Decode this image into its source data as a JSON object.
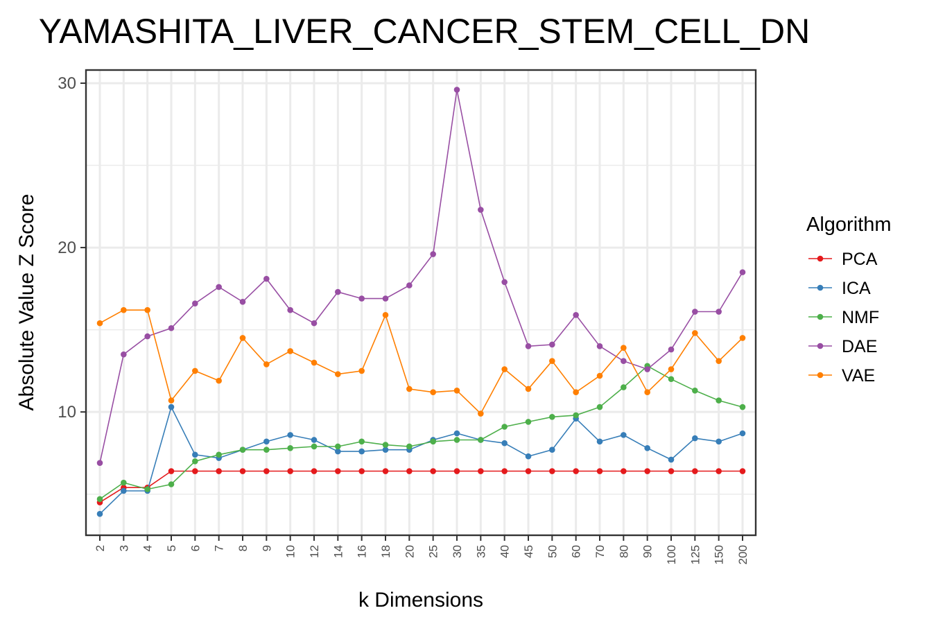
{
  "chart_data": {
    "type": "line",
    "title": "YAMASHITA_LIVER_CANCER_STEM_CELL_DN",
    "xlabel": "k Dimensions",
    "ylabel": "Absolute Value Z Score",
    "categories": [
      "2",
      "3",
      "4",
      "5",
      "6",
      "7",
      "8",
      "9",
      "10",
      "12",
      "14",
      "16",
      "18",
      "20",
      "25",
      "30",
      "35",
      "40",
      "45",
      "50",
      "60",
      "70",
      "80",
      "90",
      "100",
      "125",
      "150",
      "200"
    ],
    "ylim": [
      2.5,
      30.8
    ],
    "yticks": [
      10,
      20,
      30
    ],
    "grid": true,
    "legend": {
      "title": "Algorithm",
      "position": "right"
    },
    "series": [
      {
        "name": "PCA",
        "color": "#e41a1c",
        "values": [
          4.5,
          5.4,
          5.4,
          6.4,
          6.4,
          6.4,
          6.4,
          6.4,
          6.4,
          6.4,
          6.4,
          6.4,
          6.4,
          6.4,
          6.4,
          6.4,
          6.4,
          6.4,
          6.4,
          6.4,
          6.4,
          6.4,
          6.4,
          6.4,
          6.4,
          6.4,
          6.4,
          6.4
        ]
      },
      {
        "name": "ICA",
        "color": "#377eb8",
        "values": [
          3.8,
          5.2,
          5.2,
          10.3,
          7.4,
          7.2,
          7.7,
          8.2,
          8.6,
          8.3,
          7.6,
          7.6,
          7.7,
          7.7,
          8.3,
          8.7,
          8.3,
          8.1,
          7.3,
          7.7,
          9.6,
          8.2,
          8.6,
          7.8,
          7.1,
          8.4,
          8.2,
          8.7
        ]
      },
      {
        "name": "NMF",
        "color": "#4daf4a",
        "values": [
          4.7,
          5.7,
          5.3,
          5.6,
          7.0,
          7.4,
          7.7,
          7.7,
          7.8,
          7.9,
          7.9,
          8.2,
          8.0,
          7.9,
          8.2,
          8.3,
          8.3,
          9.1,
          9.4,
          9.7,
          9.8,
          10.3,
          11.5,
          12.8,
          12.0,
          11.3,
          10.7,
          10.3
        ]
      },
      {
        "name": "DAE",
        "color": "#984ea3",
        "values": [
          6.9,
          13.5,
          14.6,
          15.1,
          16.6,
          17.6,
          16.7,
          18.1,
          16.2,
          15.4,
          17.3,
          16.9,
          16.9,
          17.7,
          19.6,
          29.6,
          22.3,
          17.9,
          14.0,
          14.1,
          15.9,
          14.0,
          13.1,
          12.6,
          13.8,
          16.1,
          16.1,
          18.5
        ]
      },
      {
        "name": "VAE",
        "color": "#ff7f00",
        "values": [
          15.4,
          16.2,
          16.2,
          10.7,
          12.5,
          11.9,
          14.5,
          12.9,
          13.7,
          13.0,
          12.3,
          12.5,
          15.9,
          11.4,
          11.2,
          11.3,
          9.9,
          12.6,
          11.4,
          13.1,
          11.2,
          12.2,
          13.9,
          11.2,
          12.6,
          14.8,
          13.1,
          14.5
        ]
      }
    ]
  }
}
